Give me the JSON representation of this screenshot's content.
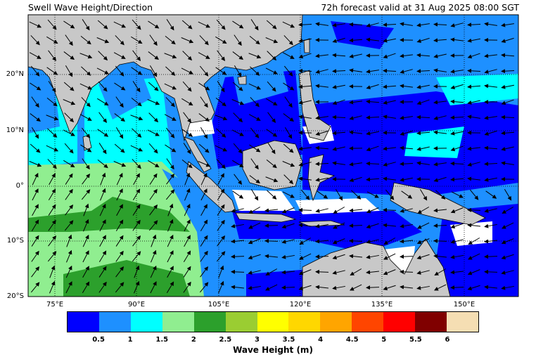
{
  "title_left": "Swell Wave Height/Direction",
  "title_right": "72h forecast valid at 31 Aug 2025 08:00 SGT",
  "lat_labels": [
    "20°N",
    "10°N",
    "0°",
    "10°S",
    "20°S"
  ],
  "lon_labels": [
    "75°E",
    "90°E",
    "105°E",
    "120°E",
    "135°E",
    "150°E"
  ],
  "colorbar": {
    "label": "Wave Height (m)",
    "ticks": [
      "0.5",
      "1",
      "1.5",
      "2",
      "2.5",
      "3",
      "3.5",
      "4",
      "4.5",
      "5",
      "5.5",
      "6"
    ],
    "colors": [
      "#0000ff",
      "#1e90ff",
      "#00ffff",
      "#90ee90",
      "#2ca02c",
      "#9acd32",
      "#ffff00",
      "#ffd700",
      "#ffa500",
      "#ff4500",
      "#ff0000",
      "#800000",
      "#f5deb3"
    ]
  },
  "map": {
    "land_color": "#c8c8c8",
    "grid": "dotted",
    "lon_range": [
      68,
      157
    ],
    "lat_range": [
      -20,
      30
    ]
  }
}
